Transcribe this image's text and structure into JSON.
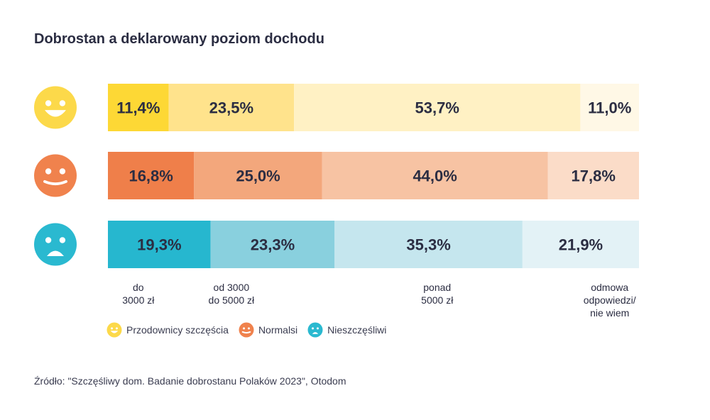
{
  "title": "Dobrostan a deklarowany poziom dochodu",
  "source": "Źródło: \"Szczęśliwy dom. Badanie dobrostanu Polaków 2023\", Otodom",
  "chart_data": {
    "type": "bar",
    "orientation": "horizontal-stacked-100",
    "categories": [
      "do\n3000 zł",
      "od 3000\ndo 5000 zł",
      "ponad\n5000 zł",
      "odmowa\nodpowiedzi/\nnie wiem"
    ],
    "series": [
      {
        "name": "Przodownicy szczęścia",
        "icon": "smile-icon",
        "values": [
          11.4,
          23.5,
          53.7,
          11.0
        ],
        "labels": [
          "11,4%",
          "23,5%",
          "53,7%",
          "11,0%"
        ],
        "colors": [
          "#fdd835",
          "#ffe38c",
          "#fff1c4",
          "#fff8e6"
        ],
        "icon_color": "#fcd94a"
      },
      {
        "name": "Normalsi",
        "icon": "neutral-face-icon",
        "values": [
          16.8,
          25.0,
          44.0,
          17.8
        ],
        "labels": [
          "16,8%",
          "25,0%",
          "44,0%",
          "17,8%"
        ],
        "colors": [
          "#ef7f4a",
          "#f3a77c",
          "#f7c3a3",
          "#fbdcc8"
        ],
        "icon_color": "#f0824d"
      },
      {
        "name": "Nieszczęśliwi",
        "icon": "sad-icon",
        "values": [
          19.3,
          23.3,
          35.3,
          21.9
        ],
        "labels": [
          "19,3%",
          "23,3%",
          "35,3%",
          "21,9%"
        ],
        "colors": [
          "#26b7cf",
          "#89d0de",
          "#c5e6ee",
          "#e3f2f6"
        ],
        "icon_color": "#2ab9d0"
      }
    ],
    "legend": "bottom-left"
  }
}
